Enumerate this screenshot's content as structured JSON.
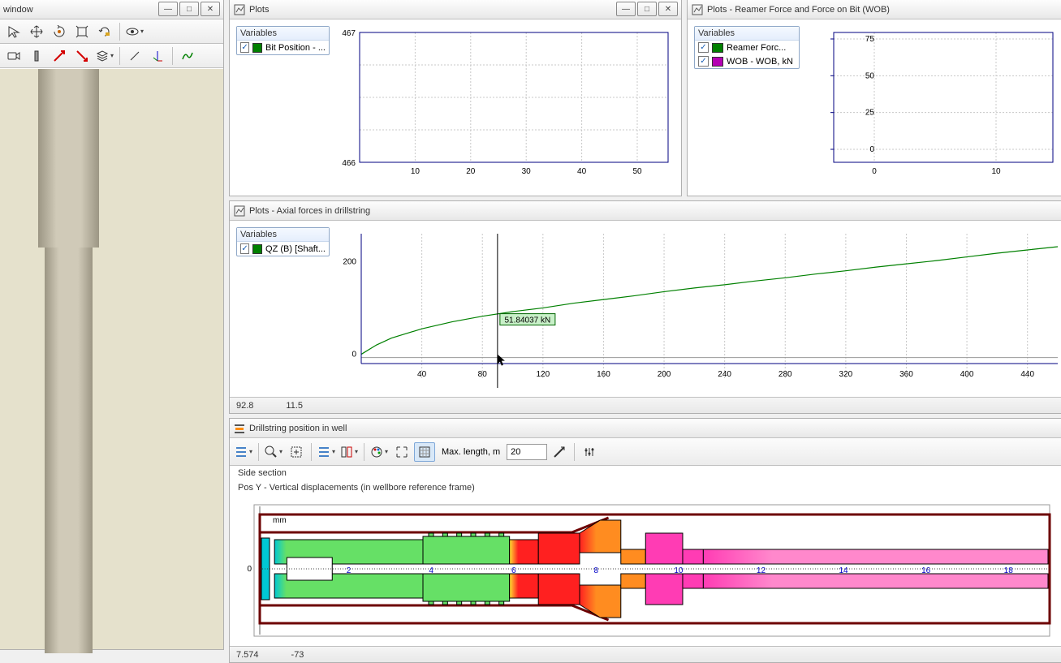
{
  "panels": {
    "view3d": {
      "title": "window",
      "bg_color": "#e5e1cc",
      "pipe_color": "#c3bdaa",
      "pipe_shadow": "#9c9684"
    },
    "plots1": {
      "title": "Plots",
      "var_header": "Variables",
      "vars": [
        {
          "label": "Bit Position - ...",
          "color": "#008000",
          "checked": true
        }
      ],
      "chart": {
        "y_ticks": [
          466,
          467
        ],
        "x_ticks": [
          10,
          20,
          30,
          40,
          50
        ],
        "grid_color": "#c8c8c8",
        "axis_color": "#000080"
      }
    },
    "plots2": {
      "title": "Plots - Reamer Force and Force on Bit (WOB)",
      "var_header": "Variables",
      "vars": [
        {
          "label": "Reamer Forc...",
          "color": "#008000",
          "checked": true
        },
        {
          "label": "WOB - WOB, kN",
          "color": "#b400b4",
          "checked": true
        }
      ],
      "chart": {
        "y_ticks": [
          0,
          25,
          50,
          75
        ],
        "x_ticks": [
          0,
          10
        ],
        "grid_color": "#c8c8c8",
        "axis_color": "#000080"
      }
    },
    "axial": {
      "title": "Plots - Axial forces in drillstring",
      "var_header": "Variables",
      "vars": [
        {
          "label": "QZ (B) [Shaft...",
          "color": "#008000",
          "checked": true
        }
      ],
      "chart": {
        "y_ticks": [
          0,
          200
        ],
        "x_ticks": [
          40,
          80,
          120,
          160,
          200,
          240,
          280,
          320,
          360,
          400,
          440
        ],
        "grid_color": "#c8c8c8",
        "axis_color": "#000080",
        "line_color": "#008000",
        "cursor_x": 90,
        "tooltip_text": "51.84037 kN",
        "tooltip_bg": "#c8f0c8",
        "series": [
          [
            0,
            0
          ],
          [
            10,
            20
          ],
          [
            20,
            35
          ],
          [
            40,
            55
          ],
          [
            60,
            70
          ],
          [
            80,
            82
          ],
          [
            100,
            92
          ],
          [
            120,
            100
          ],
          [
            140,
            110
          ],
          [
            160,
            118
          ],
          [
            180,
            126
          ],
          [
            200,
            135
          ],
          [
            220,
            143
          ],
          [
            240,
            150
          ],
          [
            260,
            158
          ],
          [
            280,
            165
          ],
          [
            300,
            173
          ],
          [
            320,
            180
          ],
          [
            340,
            188
          ],
          [
            360,
            195
          ],
          [
            380,
            202
          ],
          [
            400,
            210
          ],
          [
            420,
            218
          ],
          [
            440,
            225
          ],
          [
            460,
            232
          ]
        ]
      },
      "status": {
        "x": "92.8",
        "y": "11.5"
      }
    },
    "drillstring": {
      "title": "Drillstring position in well",
      "toolbar": {
        "max_length_label": "Max. length, m",
        "max_length_value": "20"
      },
      "subtitle1": "Side section",
      "subtitle2": "Pos Y - Vertical displacements (in wellbore reference frame)",
      "axis_unit": "mm",
      "y_ticks": [
        0
      ],
      "x_ticks": [
        2,
        4,
        6,
        8,
        10,
        12,
        14,
        16,
        18
      ],
      "status": {
        "x": "7.574",
        "y": "-73"
      },
      "colors": {
        "outer_border": "#6d0000",
        "cyan": "#00c8d4",
        "green": "#66e066",
        "yellow": "#ffe030",
        "red": "#ff2020",
        "orange": "#ff8c20",
        "pink": "#ff3cb4",
        "light_pink": "#ff88cc",
        "white": "#ffffff"
      }
    }
  }
}
